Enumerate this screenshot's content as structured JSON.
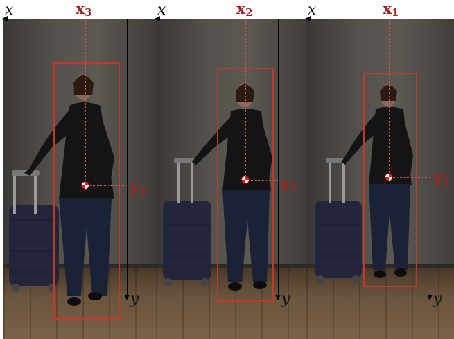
{
  "panels": [
    {
      "x_axis": "x",
      "y_axis": "y",
      "top_label": "x",
      "top_sub": "3",
      "side_label": "y",
      "side_sub": "3"
    },
    {
      "x_axis": "x",
      "y_axis": "y",
      "top_label": "x",
      "top_sub": "2",
      "side_label": "y",
      "side_sub": "2"
    },
    {
      "x_axis": "x",
      "y_axis": "y",
      "top_label": "x",
      "top_sub": "1",
      "side_label": "y",
      "side_sub": "1"
    }
  ],
  "colors": {
    "bbox": "#c0392b",
    "label": "#a32222",
    "axis": "#000000"
  }
}
